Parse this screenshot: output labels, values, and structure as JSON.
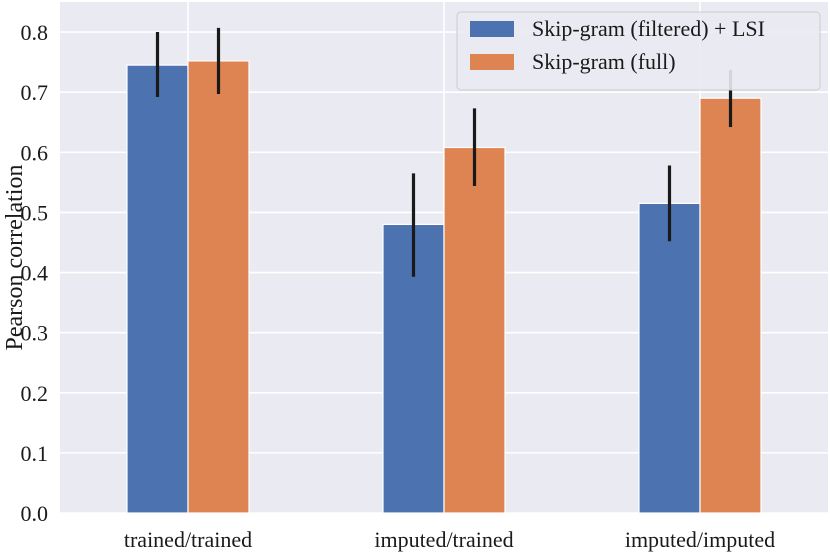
{
  "chart_data": {
    "type": "bar",
    "categories": [
      "trained/trained",
      "imputed/trained",
      "imputed/imputed"
    ],
    "series": [
      {
        "name": "Skip-gram (filtered) + LSI",
        "color": "#4C72B0",
        "values": [
          0.745,
          0.48,
          0.515
        ],
        "error_low": [
          0.692,
          0.393,
          0.452
        ],
        "error_high": [
          0.8,
          0.565,
          0.578
        ]
      },
      {
        "name": "Skip-gram (full)",
        "color": "#DD8452",
        "values": [
          0.752,
          0.608,
          0.69
        ],
        "error_low": [
          0.697,
          0.544,
          0.642
        ],
        "error_high": [
          0.807,
          0.673,
          0.737
        ]
      }
    ],
    "ylabel": "Pearson correlation",
    "xlabel": "",
    "ylim": [
      0,
      0.85
    ],
    "yticks": [
      "0.0",
      "0.1",
      "0.2",
      "0.3",
      "0.4",
      "0.5",
      "0.6",
      "0.7",
      "0.8"
    ],
    "grid": true,
    "legend_position": "top-right",
    "plot_background": "#EAEAF2"
  }
}
